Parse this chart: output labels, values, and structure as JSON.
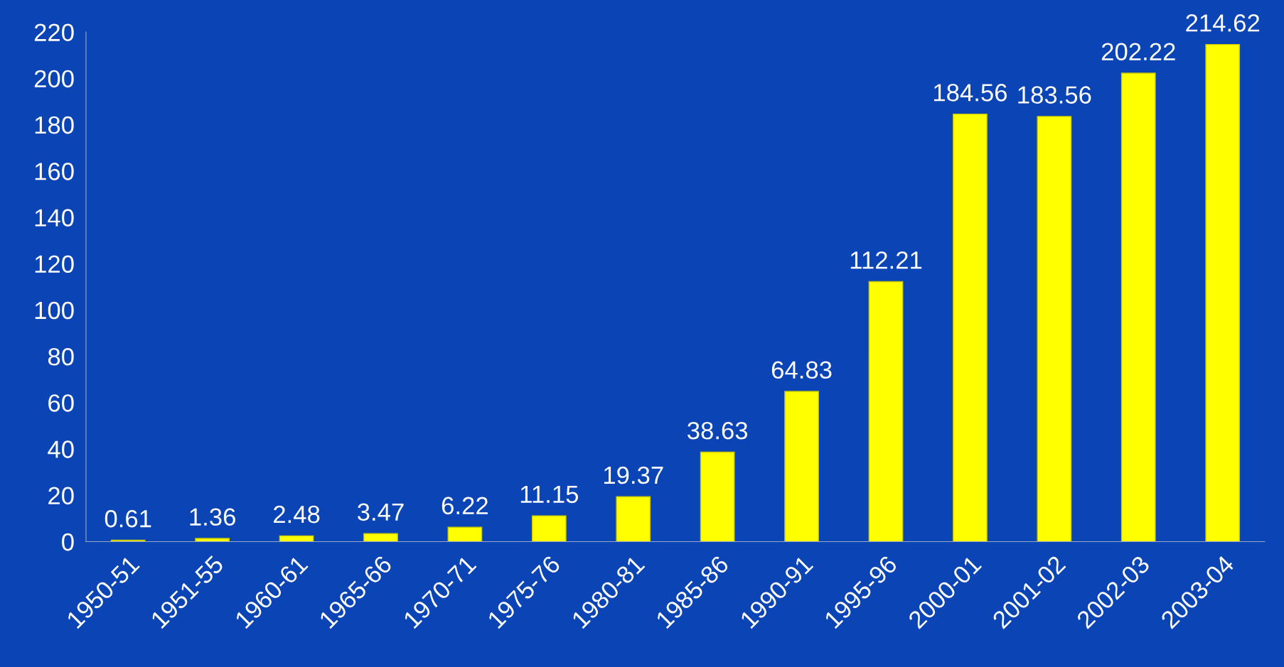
{
  "chart_data": {
    "type": "bar",
    "categories": [
      "1950-51",
      "1951-55",
      "1960-61",
      "1965-66",
      "1970-71",
      "1975-76",
      "1980-81",
      "1985-86",
      "1990-91",
      "1995-96",
      "2000-01",
      "2001-02",
      "2002-03",
      "2003-04"
    ],
    "values": [
      0.61,
      1.36,
      2.48,
      3.47,
      6.22,
      11.15,
      19.37,
      38.63,
      64.83,
      112.21,
      184.56,
      183.56,
      202.22,
      214.62
    ],
    "color": "#ffff00",
    "ylim": [
      0,
      220
    ],
    "yticks": [
      0,
      20,
      40,
      60,
      80,
      100,
      120,
      140,
      160,
      180,
      200,
      220
    ],
    "data_labels": true,
    "grid": false,
    "legend": false
  }
}
